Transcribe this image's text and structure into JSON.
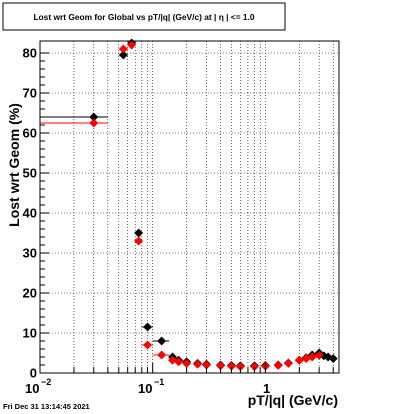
{
  "chart_data": {
    "type": "scatter",
    "title": "Lost wrt Geom for Global vs pT/|q| (GeV/c) at |  η | <= 1.0",
    "xlabel": "pT/|q| (GeV/c)",
    "ylabel": "Lost wrt Geom (%)",
    "x_scale": "log",
    "xlim": [
      0.01,
      4.5
    ],
    "ylim": [
      0,
      83
    ],
    "grid": true,
    "x_tick_labels": [
      "10",
      "−2",
      "10",
      "−1",
      "1"
    ],
    "y_tick_labels": [
      "0",
      "10",
      "20",
      "30",
      "40",
      "50",
      "60",
      "70",
      "80"
    ],
    "footer": "Fri Dec 31 13:14:45 2021",
    "colors": {
      "series_black": "#000000",
      "series_red": "#ff0000"
    },
    "series": [
      {
        "color": "#000000",
        "marker": "diamond",
        "points": [
          {
            "x": 0.03,
            "y": 64.0,
            "xlo": 0.01,
            "xhi": 0.04
          },
          {
            "x": 0.055,
            "y": 79.5,
            "xlo": 0.05,
            "xhi": 0.06
          },
          {
            "x": 0.065,
            "y": 82.5,
            "xlo": 0.06,
            "xhi": 0.07
          },
          {
            "x": 0.075,
            "y": 35.0,
            "xlo": 0.07,
            "xhi": 0.08
          },
          {
            "x": 0.09,
            "y": 11.5,
            "xlo": 0.08,
            "xhi": 0.1
          },
          {
            "x": 0.12,
            "y": 8.0,
            "xlo": 0.1,
            "xhi": 0.14
          },
          {
            "x": 0.15,
            "y": 4.0
          },
          {
            "x": 0.17,
            "y": 3.2
          },
          {
            "x": 0.2,
            "y": 2.8
          },
          {
            "x": 0.25,
            "y": 2.4
          },
          {
            "x": 0.3,
            "y": 2.2
          },
          {
            "x": 0.4,
            "y": 2.0
          },
          {
            "x": 0.5,
            "y": 1.9
          },
          {
            "x": 0.6,
            "y": 1.8
          },
          {
            "x": 0.8,
            "y": 1.8
          },
          {
            "x": 1.0,
            "y": 1.9
          },
          {
            "x": 1.3,
            "y": 2.0
          },
          {
            "x": 1.6,
            "y": 2.5
          },
          {
            "x": 2.0,
            "y": 3.2
          },
          {
            "x": 2.3,
            "y": 3.8
          },
          {
            "x": 2.6,
            "y": 4.5
          },
          {
            "x": 3.0,
            "y": 5.0
          },
          {
            "x": 3.3,
            "y": 4.3
          },
          {
            "x": 3.6,
            "y": 4.0
          },
          {
            "x": 4.0,
            "y": 3.6
          }
        ]
      },
      {
        "color": "#ff0000",
        "marker": "diamond",
        "points": [
          {
            "x": 0.03,
            "y": 62.5,
            "xlo": 0.01,
            "xhi": 0.04
          },
          {
            "x": 0.055,
            "y": 81.0,
            "xlo": 0.05,
            "xhi": 0.06
          },
          {
            "x": 0.065,
            "y": 82.0,
            "xlo": 0.06,
            "xhi": 0.07
          },
          {
            "x": 0.075,
            "y": 33.0,
            "xlo": 0.07,
            "xhi": 0.08
          },
          {
            "x": 0.09,
            "y": 7.0,
            "xlo": 0.08,
            "xhi": 0.1
          },
          {
            "x": 0.12,
            "y": 4.5,
            "xlo": 0.1,
            "xhi": 0.14
          },
          {
            "x": 0.15,
            "y": 3.2
          },
          {
            "x": 0.17,
            "y": 2.8
          },
          {
            "x": 0.2,
            "y": 2.4
          },
          {
            "x": 0.25,
            "y": 2.2
          },
          {
            "x": 0.3,
            "y": 2.0
          },
          {
            "x": 0.4,
            "y": 1.8
          },
          {
            "x": 0.5,
            "y": 1.7
          },
          {
            "x": 0.6,
            "y": 1.6
          },
          {
            "x": 0.8,
            "y": 1.6
          },
          {
            "x": 1.0,
            "y": 1.7
          },
          {
            "x": 1.3,
            "y": 1.9
          },
          {
            "x": 1.6,
            "y": 2.4
          },
          {
            "x": 2.0,
            "y": 3.2
          },
          {
            "x": 2.3,
            "y": 3.6
          },
          {
            "x": 2.6,
            "y": 4.0
          },
          {
            "x": 3.0,
            "y": 4.4
          }
        ]
      }
    ]
  }
}
